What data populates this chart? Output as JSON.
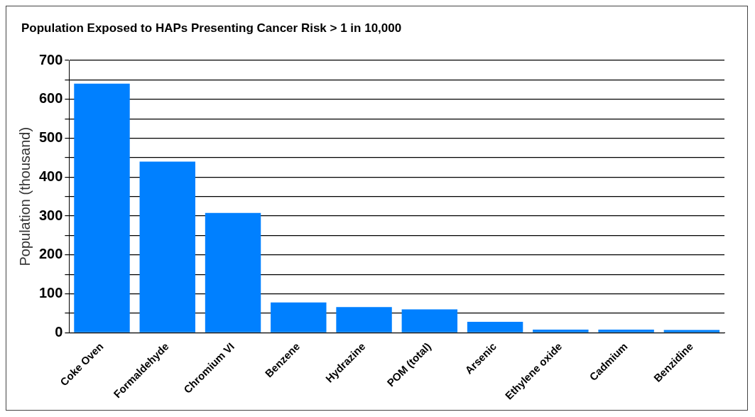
{
  "chart_data": {
    "type": "bar",
    "title": "Population Exposed to HAPs Presenting Cancer Risk > 1 in 10,000",
    "ylabel": "Population (thousand)",
    "categories": [
      "Coke Oven",
      "Formaldehyde",
      "Chromium VI",
      "Benzene",
      "Hydrazine",
      "POM (total)",
      "Arsenic",
      "Ethylene oxide",
      "Cadmium",
      "Benzidine"
    ],
    "values": [
      640,
      440,
      308,
      78,
      66,
      60,
      28,
      8,
      8,
      7
    ],
    "color": "#0080ff",
    "ylim": [
      0,
      700
    ],
    "yticks": [
      0,
      {
        "value": 50,
        "label": null
      },
      100,
      {
        "value": 150,
        "label": null
      },
      200,
      {
        "value": 250,
        "label": null
      },
      300,
      {
        "value": 350,
        "label": null
      },
      400,
      {
        "value": 450,
        "label": null
      },
      500,
      {
        "value": 550,
        "label": null
      },
      600,
      {
        "value": 650,
        "label": null
      },
      700
    ],
    "grid": "y"
  }
}
